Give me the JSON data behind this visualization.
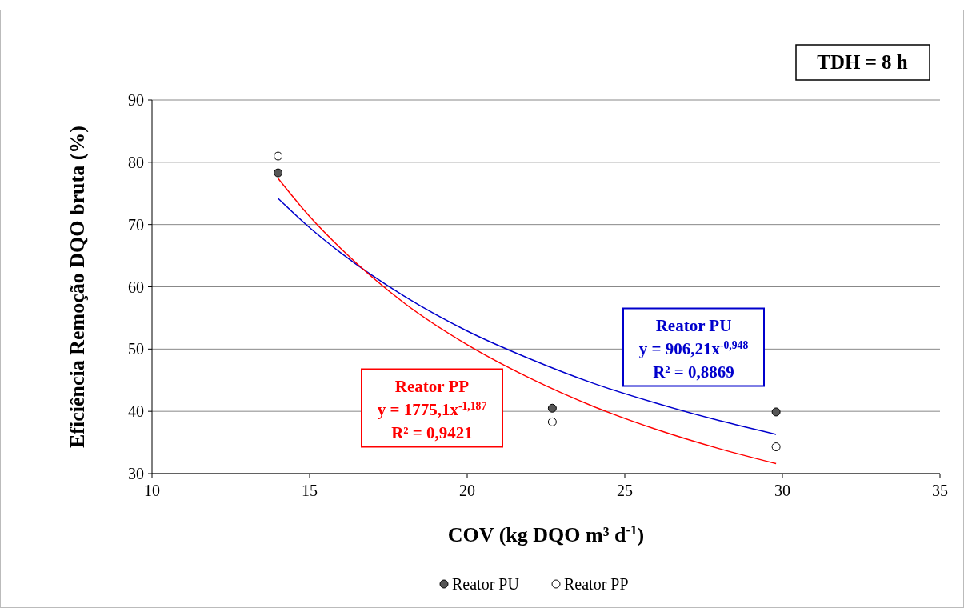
{
  "chart_data": {
    "type": "scatter",
    "xlabel": "COV (kg DQO m³ d$^{-1}$)",
    "ylabel": "Eficiência Remoção DQO bruta (%)",
    "xlim": [
      10,
      35
    ],
    "xticks": [
      10,
      15,
      20,
      25,
      30,
      35
    ],
    "ylim": [
      30,
      90
    ],
    "yticks": [
      30,
      40,
      50,
      60,
      70,
      80,
      90
    ],
    "grid": "y",
    "legend": "bottom",
    "marker": "circle",
    "annotations": [
      "TDH = 8 h",
      "Reator PU\ny = 906,21x$^{-0,948}$\nR² = 0,8869",
      "Reator PP\ny = 1775,1x$^{-1,187}$\nR² = 0,9421"
    ],
    "series": [
      {
        "name": "Reator PU",
        "color": "#555555",
        "x": [
          14,
          22.7,
          29.8
        ],
        "values": [
          78.3,
          40.5,
          39.9
        ]
      },
      {
        "name": "Reator PP",
        "color": "#ffffff",
        "x": [
          14,
          22.7,
          29.8
        ],
        "values": [
          81,
          38.3,
          34.3
        ]
      },
      {
        "type": "line",
        "marker": "none",
        "color": "#0000cc",
        "x": [
          14,
          15,
          16,
          18,
          20,
          22,
          24,
          26,
          28,
          29.8
        ],
        "values": [
          74.2,
          69.5,
          65.4,
          58.5,
          52.9,
          48.4,
          44.5,
          41.3,
          38.5,
          36.3
        ]
      },
      {
        "type": "line",
        "marker": "none",
        "color": "#ff0000",
        "x": [
          14,
          15,
          16,
          18,
          20,
          22,
          24,
          26,
          28,
          29.8
        ],
        "values": [
          77.4,
          71.3,
          66.1,
          57.4,
          50.7,
          45.3,
          40.8,
          37.1,
          34.0,
          31.6
        ]
      }
    ]
  }
}
